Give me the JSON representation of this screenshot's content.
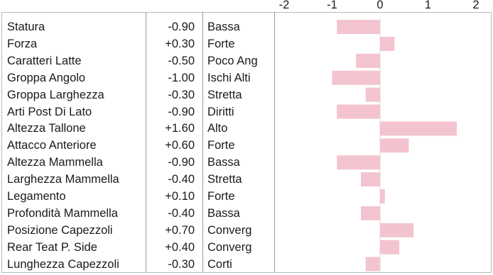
{
  "chart_data": {
    "type": "bar",
    "orientation": "horizontal",
    "xlim": [
      -2,
      2
    ],
    "x_ticks": [
      "-2",
      "-1",
      "0",
      "1",
      "2"
    ],
    "bar_color": "#f3c4cf",
    "rows": [
      {
        "label": "Statura",
        "value_text": "-0.90",
        "value": -0.9,
        "class": "Bassa"
      },
      {
        "label": "Forza",
        "value_text": "+0.30",
        "value": 0.3,
        "class": "Forte"
      },
      {
        "label": "Caratteri Latte",
        "value_text": "-0.50",
        "value": -0.5,
        "class": "Poco Ang"
      },
      {
        "label": "Groppa Angolo",
        "value_text": "-1.00",
        "value": -1.0,
        "class": "Ischi Alti"
      },
      {
        "label": "Groppa Larghezza",
        "value_text": "-0.30",
        "value": -0.3,
        "class": "Stretta"
      },
      {
        "label": "Arti Post Di Lato",
        "value_text": "-0.90",
        "value": -0.9,
        "class": "Diritti"
      },
      {
        "label": "Altezza Tallone",
        "value_text": "+1.60",
        "value": 1.6,
        "class": "Alto"
      },
      {
        "label": "Attacco Anteriore",
        "value_text": "+0.60",
        "value": 0.6,
        "class": "Forte"
      },
      {
        "label": "Altezza Mammella",
        "value_text": "-0.90",
        "value": -0.9,
        "class": "Bassa"
      },
      {
        "label": "Larghezza Mammella",
        "value_text": "-0.40",
        "value": -0.4,
        "class": "Stretta"
      },
      {
        "label": "Legamento",
        "value_text": "+0.10",
        "value": 0.1,
        "class": "Forte"
      },
      {
        "label": "Profondità Mammella",
        "value_text": "-0.40",
        "value": -0.4,
        "class": "Bassa"
      },
      {
        "label": "Posizione Capezzoli",
        "value_text": "+0.70",
        "value": 0.7,
        "class": "Converg"
      },
      {
        "label": "Rear Teat P. Side",
        "value_text": "+0.40",
        "value": 0.4,
        "class": "Converg"
      },
      {
        "label": "Lunghezza Capezzoli",
        "value_text": "-0.30",
        "value": -0.3,
        "class": "Corti"
      }
    ]
  }
}
